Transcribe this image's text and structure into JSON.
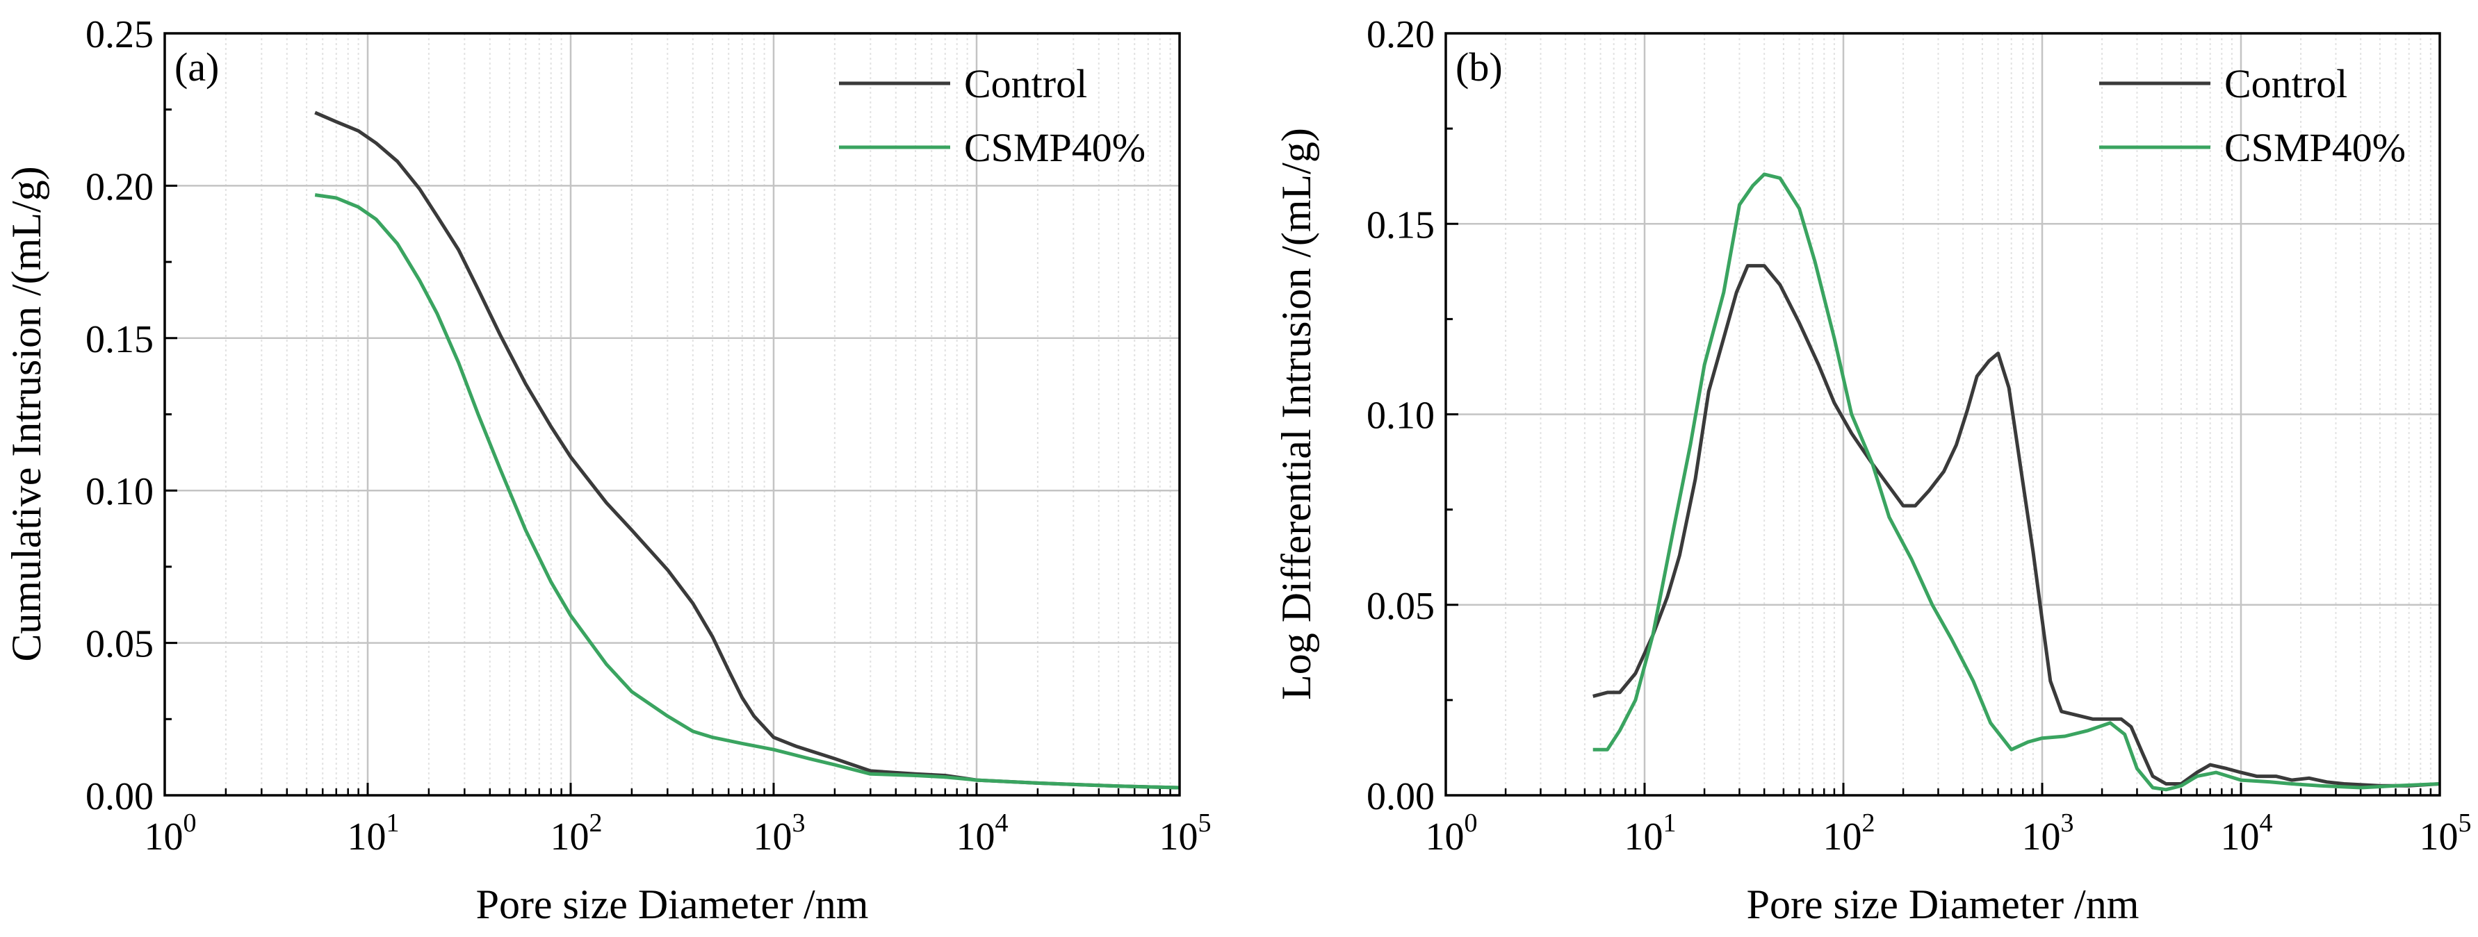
{
  "chart_data": [
    {
      "type": "line",
      "panel_label": "(a)",
      "xscale": "log",
      "xlim": [
        1,
        100000
      ],
      "ylim": [
        0,
        0.25
      ],
      "xlabel": "Pore size Diameter /nm",
      "ylabel": "Cumulative Intrusion /(mL/g)",
      "x_ticks": [
        {
          "base": "10",
          "exp": "0"
        },
        {
          "base": "10",
          "exp": "1"
        },
        {
          "base": "10",
          "exp": "2"
        },
        {
          "base": "10",
          "exp": "3"
        },
        {
          "base": "10",
          "exp": "4"
        },
        {
          "base": "10",
          "exp": "5"
        }
      ],
      "y_ticks": [
        "0.00",
        "0.05",
        "0.10",
        "0.15",
        "0.20",
        "0.25"
      ],
      "grid": true,
      "legend": "top-right",
      "series": [
        {
          "name": "Control",
          "color": "#3a3a3a",
          "points": [
            [
              5.5,
              0.224
            ],
            [
              7,
              0.221
            ],
            [
              9,
              0.218
            ],
            [
              11,
              0.214
            ],
            [
              14,
              0.208
            ],
            [
              18,
              0.199
            ],
            [
              22,
              0.19
            ],
            [
              28,
              0.179
            ],
            [
              35,
              0.166
            ],
            [
              45,
              0.151
            ],
            [
              60,
              0.135
            ],
            [
              80,
              0.121
            ],
            [
              100,
              0.111
            ],
            [
              150,
              0.096
            ],
            [
              200,
              0.087
            ],
            [
              300,
              0.074
            ],
            [
              400,
              0.063
            ],
            [
              500,
              0.052
            ],
            [
              600,
              0.041
            ],
            [
              700,
              0.032
            ],
            [
              800,
              0.026
            ],
            [
              1000,
              0.019
            ],
            [
              1300,
              0.016
            ],
            [
              2000,
              0.012
            ],
            [
              3000,
              0.008
            ],
            [
              5000,
              0.007
            ],
            [
              7000,
              0.0065
            ],
            [
              10000,
              0.005
            ],
            [
              20000,
              0.004
            ],
            [
              50000,
              0.003
            ],
            [
              100000,
              0.0025
            ]
          ]
        },
        {
          "name": "CSMP40%",
          "color": "#3aa460",
          "points": [
            [
              5.5,
              0.197
            ],
            [
              7,
              0.196
            ],
            [
              9,
              0.193
            ],
            [
              11,
              0.189
            ],
            [
              14,
              0.181
            ],
            [
              18,
              0.169
            ],
            [
              22,
              0.158
            ],
            [
              28,
              0.142
            ],
            [
              35,
              0.125
            ],
            [
              45,
              0.107
            ],
            [
              60,
              0.087
            ],
            [
              80,
              0.07
            ],
            [
              100,
              0.059
            ],
            [
              150,
              0.043
            ],
            [
              200,
              0.034
            ],
            [
              300,
              0.026
            ],
            [
              400,
              0.021
            ],
            [
              500,
              0.019
            ],
            [
              700,
              0.017
            ],
            [
              1000,
              0.015
            ],
            [
              1500,
              0.012
            ],
            [
              2000,
              0.01
            ],
            [
              3000,
              0.007
            ],
            [
              5000,
              0.0065
            ],
            [
              7000,
              0.006
            ],
            [
              10000,
              0.005
            ],
            [
              20000,
              0.004
            ],
            [
              50000,
              0.003
            ],
            [
              100000,
              0.0025
            ]
          ]
        }
      ]
    },
    {
      "type": "line",
      "panel_label": "(b)",
      "xscale": "log",
      "xlim": [
        1,
        100000
      ],
      "ylim": [
        0,
        0.2
      ],
      "xlabel": "Pore size Diameter /nm",
      "ylabel": "Log Differential Intrusion /(mL/g)",
      "x_ticks": [
        {
          "base": "10",
          "exp": "0"
        },
        {
          "base": "10",
          "exp": "1"
        },
        {
          "base": "10",
          "exp": "2"
        },
        {
          "base": "10",
          "exp": "3"
        },
        {
          "base": "10",
          "exp": "4"
        },
        {
          "base": "10",
          "exp": "5"
        }
      ],
      "y_ticks": [
        "0.00",
        "0.05",
        "0.10",
        "0.15",
        "0.20"
      ],
      "grid": true,
      "legend": "top-right",
      "series": [
        {
          "name": "Control",
          "color": "#3a3a3a",
          "points": [
            [
              5.5,
              0.026
            ],
            [
              6.5,
              0.027
            ],
            [
              7.5,
              0.027
            ],
            [
              9,
              0.032
            ],
            [
              11,
              0.042
            ],
            [
              13,
              0.052
            ],
            [
              15,
              0.063
            ],
            [
              18,
              0.083
            ],
            [
              21,
              0.106
            ],
            [
              25,
              0.12
            ],
            [
              29,
              0.132
            ],
            [
              33,
              0.139
            ],
            [
              40,
              0.139
            ],
            [
              48,
              0.134
            ],
            [
              60,
              0.124
            ],
            [
              75,
              0.113
            ],
            [
              90,
              0.103
            ],
            [
              110,
              0.095
            ],
            [
              140,
              0.087
            ],
            [
              170,
              0.081
            ],
            [
              200,
              0.076
            ],
            [
              230,
              0.076
            ],
            [
              270,
              0.08
            ],
            [
              320,
              0.085
            ],
            [
              370,
              0.092
            ],
            [
              420,
              0.101
            ],
            [
              470,
              0.11
            ],
            [
              540,
              0.114
            ],
            [
              600,
              0.116
            ],
            [
              680,
              0.107
            ],
            [
              800,
              0.082
            ],
            [
              900,
              0.064
            ],
            [
              1000,
              0.046
            ],
            [
              1100,
              0.03
            ],
            [
              1250,
              0.022
            ],
            [
              1500,
              0.021
            ],
            [
              1800,
              0.02
            ],
            [
              2100,
              0.02
            ],
            [
              2500,
              0.02
            ],
            [
              2800,
              0.018
            ],
            [
              3200,
              0.011
            ],
            [
              3600,
              0.005
            ],
            [
              4200,
              0.003
            ],
            [
              5000,
              0.003
            ],
            [
              6000,
              0.006
            ],
            [
              7000,
              0.008
            ],
            [
              8500,
              0.007
            ],
            [
              10000,
              0.006
            ],
            [
              12000,
              0.005
            ],
            [
              15000,
              0.005
            ],
            [
              18000,
              0.004
            ],
            [
              22000,
              0.0045
            ],
            [
              27000,
              0.0035
            ],
            [
              33000,
              0.003
            ],
            [
              50000,
              0.0025
            ],
            [
              70000,
              0.0025
            ],
            [
              100000,
              0.003
            ]
          ]
        },
        {
          "name": "CSMP40%",
          "color": "#3aa460",
          "points": [
            [
              5.5,
              0.012
            ],
            [
              6.5,
              0.012
            ],
            [
              7.5,
              0.017
            ],
            [
              9,
              0.025
            ],
            [
              11,
              0.042
            ],
            [
              14,
              0.07
            ],
            [
              17,
              0.092
            ],
            [
              20,
              0.113
            ],
            [
              25,
              0.132
            ],
            [
              30,
              0.155
            ],
            [
              35,
              0.16
            ],
            [
              40,
              0.163
            ],
            [
              48,
              0.162
            ],
            [
              60,
              0.154
            ],
            [
              72,
              0.14
            ],
            [
              90,
              0.12
            ],
            [
              110,
              0.1
            ],
            [
              140,
              0.087
            ],
            [
              170,
              0.073
            ],
            [
              220,
              0.062
            ],
            [
              280,
              0.05
            ],
            [
              350,
              0.041
            ],
            [
              450,
              0.03
            ],
            [
              550,
              0.019
            ],
            [
              700,
              0.012
            ],
            [
              850,
              0.014
            ],
            [
              1000,
              0.015
            ],
            [
              1300,
              0.0155
            ],
            [
              1700,
              0.017
            ],
            [
              2200,
              0.019
            ],
            [
              2600,
              0.016
            ],
            [
              3000,
              0.007
            ],
            [
              3600,
              0.002
            ],
            [
              4200,
              0.0015
            ],
            [
              5000,
              0.0025
            ],
            [
              6000,
              0.005
            ],
            [
              7500,
              0.006
            ],
            [
              10000,
              0.004
            ],
            [
              14000,
              0.0035
            ],
            [
              18000,
              0.003
            ],
            [
              25000,
              0.0025
            ],
            [
              40000,
              0.002
            ],
            [
              60000,
              0.0025
            ],
            [
              100000,
              0.003
            ]
          ]
        }
      ]
    }
  ]
}
